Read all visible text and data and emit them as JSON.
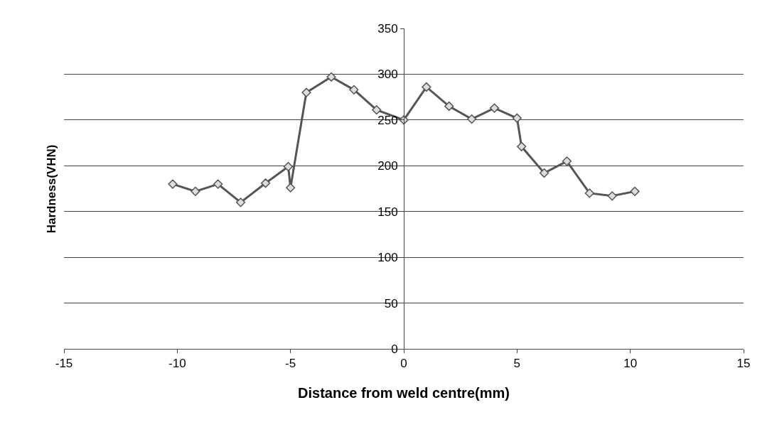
{
  "chart_data": {
    "type": "line",
    "xlabel": "Distance from weld centre(mm)",
    "ylabel": "Hardness(VHN)",
    "x": [
      -10.2,
      -9.2,
      -8.2,
      -7.2,
      -6.1,
      -5.1,
      -5.0,
      -4.3,
      -3.2,
      -2.2,
      -1.2,
      0,
      1,
      2,
      3,
      4,
      5,
      5.2,
      6.2,
      7.2,
      8.2,
      9.2,
      10.2
    ],
    "series": [
      {
        "color": "#555555",
        "values": [
          180,
          172,
          180,
          160,
          181,
          199,
          176,
          280,
          297,
          283,
          261,
          250,
          286,
          265,
          251,
          263,
          252,
          221,
          192,
          205,
          170,
          167,
          172
        ]
      }
    ],
    "xlim": [
      -15,
      15
    ],
    "xticks": [
      -15,
      -10,
      -5,
      0,
      5,
      10,
      15
    ],
    "ylim": [
      0,
      350
    ],
    "yticks": [
      0,
      50,
      100,
      150,
      200,
      250,
      300,
      350
    ],
    "grid": "y",
    "legend": false,
    "marker": "diamond",
    "line_style": "solid"
  }
}
